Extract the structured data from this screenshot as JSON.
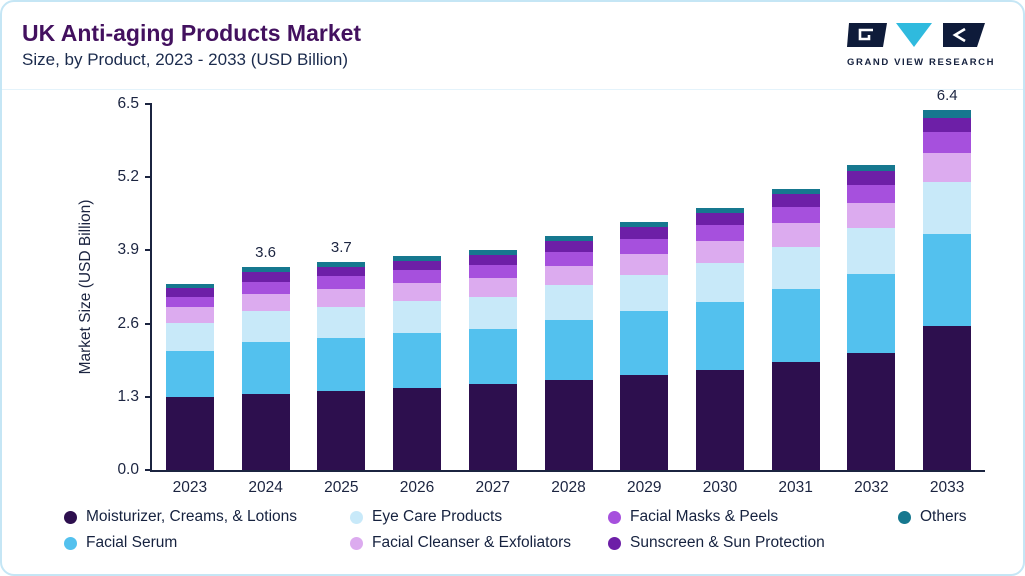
{
  "header": {
    "title": "UK Anti-aging Products Market",
    "subtitle": "Size, by Product, 2023 - 2033 (USD Billion)",
    "logo_text": "GRAND VIEW RESEARCH"
  },
  "chart_data": {
    "type": "bar",
    "stacked": true,
    "title": "UK Anti-aging Products Market Size, by Product, 2023 - 2033 (USD Billion)",
    "xlabel": "",
    "ylabel": "Market Size (USD Billion)",
    "ylim": [
      0,
      6.5
    ],
    "yticks": [
      "0.0",
      "1.3",
      "2.6",
      "3.9",
      "5.2",
      "6.5"
    ],
    "grid": false,
    "legend_position": "bottom",
    "categories": [
      "2023",
      "2024",
      "2025",
      "2026",
      "2027",
      "2028",
      "2029",
      "2030",
      "2031",
      "2032",
      "2033"
    ],
    "series": [
      {
        "name": "Moisturizer, Creams, & Lotions",
        "color": "#2d0f4e",
        "values": [
          1.3,
          1.35,
          1.4,
          1.46,
          1.52,
          1.6,
          1.68,
          1.78,
          1.91,
          2.08,
          2.55
        ]
      },
      {
        "name": "Facial Serum",
        "color": "#53c1ee",
        "values": [
          0.82,
          0.92,
          0.94,
          0.97,
          0.99,
          1.07,
          1.14,
          1.21,
          1.31,
          1.41,
          1.64
        ]
      },
      {
        "name": "Eye Care Products",
        "color": "#c8e9f9",
        "values": [
          0.49,
          0.55,
          0.56,
          0.57,
          0.57,
          0.61,
          0.65,
          0.69,
          0.74,
          0.8,
          0.92
        ]
      },
      {
        "name": "Facial Cleanser & Exfoliators",
        "color": "#dcabef",
        "values": [
          0.28,
          0.31,
          0.32,
          0.33,
          0.33,
          0.35,
          0.37,
          0.39,
          0.42,
          0.45,
          0.52
        ]
      },
      {
        "name": "Facial Masks & Peels",
        "color": "#a650dd",
        "values": [
          0.19,
          0.21,
          0.22,
          0.22,
          0.23,
          0.25,
          0.27,
          0.28,
          0.3,
          0.33,
          0.37
        ]
      },
      {
        "name": "Sunscreen & Sun Protection",
        "color": "#6d1fa7",
        "values": [
          0.15,
          0.17,
          0.17,
          0.17,
          0.18,
          0.19,
          0.2,
          0.21,
          0.22,
          0.24,
          0.26
        ]
      },
      {
        "name": "Others",
        "color": "#16788f",
        "values": [
          0.07,
          0.09,
          0.09,
          0.08,
          0.08,
          0.08,
          0.09,
          0.09,
          0.1,
          0.11,
          0.14
        ]
      }
    ],
    "bar_labels": {
      "2024": "3.6",
      "2025": "3.7",
      "2033": "6.4"
    },
    "legend_rows": [
      [
        0,
        2,
        4,
        6
      ],
      [
        1,
        3,
        5
      ]
    ]
  },
  "colors": {
    "axis": "#1b2440",
    "title": "#43115f",
    "logo_navy": "#0e1b3a",
    "logo_teal": "#2fbade"
  }
}
